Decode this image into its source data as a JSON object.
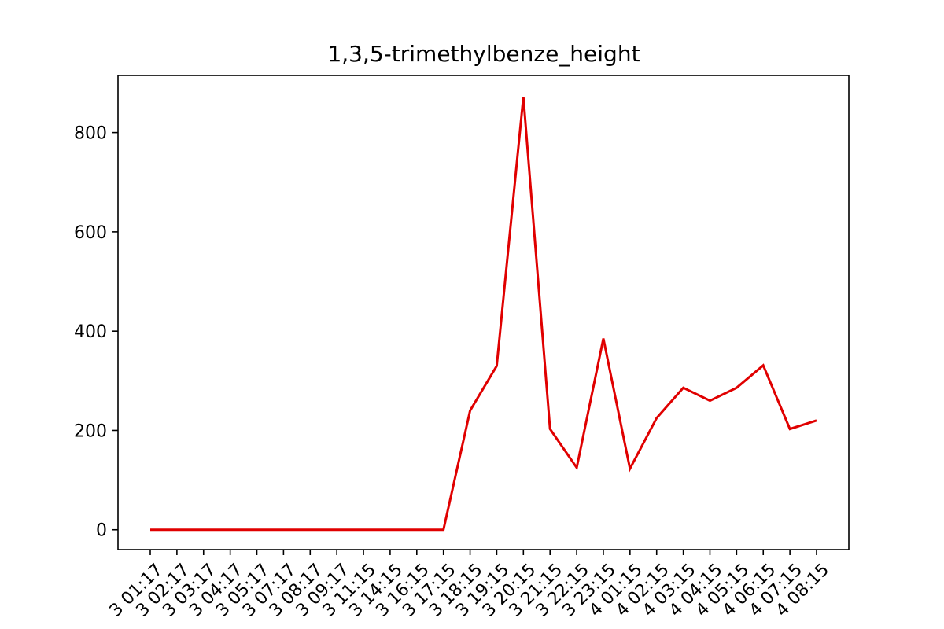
{
  "chart_data": {
    "type": "line",
    "title": "1,3,5-trimethylbenze_height",
    "xlabel": "",
    "ylabel": "",
    "ylim": [
      -40,
      915
    ],
    "yticks": [
      0,
      200,
      400,
      600,
      800
    ],
    "grid": false,
    "legend": "none",
    "line_color": "#e00000",
    "categories": [
      "3 01:17",
      "3 02:17",
      "3 03:17",
      "3 04:17",
      "3 05:17",
      "3 07:17",
      "3 08:17",
      "3 09:17",
      "3 11:15",
      "3 14:15",
      "3 16:15",
      "3 17:15",
      "3 18:15",
      "3 19:15",
      "3 20:15",
      "3 21:15",
      "3 22:15",
      "3 23:15",
      "4 01:15",
      "4 02:15",
      "4 03:15",
      "4 04:15",
      "4 05:15",
      "4 06:15",
      "4 07:15",
      "4 08:15"
    ],
    "series": [
      {
        "values": [
          0,
          0,
          0,
          0,
          0,
          0,
          0,
          0,
          0,
          0,
          0,
          0,
          240,
          330,
          872,
          203,
          125,
          385,
          123,
          225,
          286,
          260,
          286,
          331,
          203,
          220
        ]
      }
    ]
  }
}
